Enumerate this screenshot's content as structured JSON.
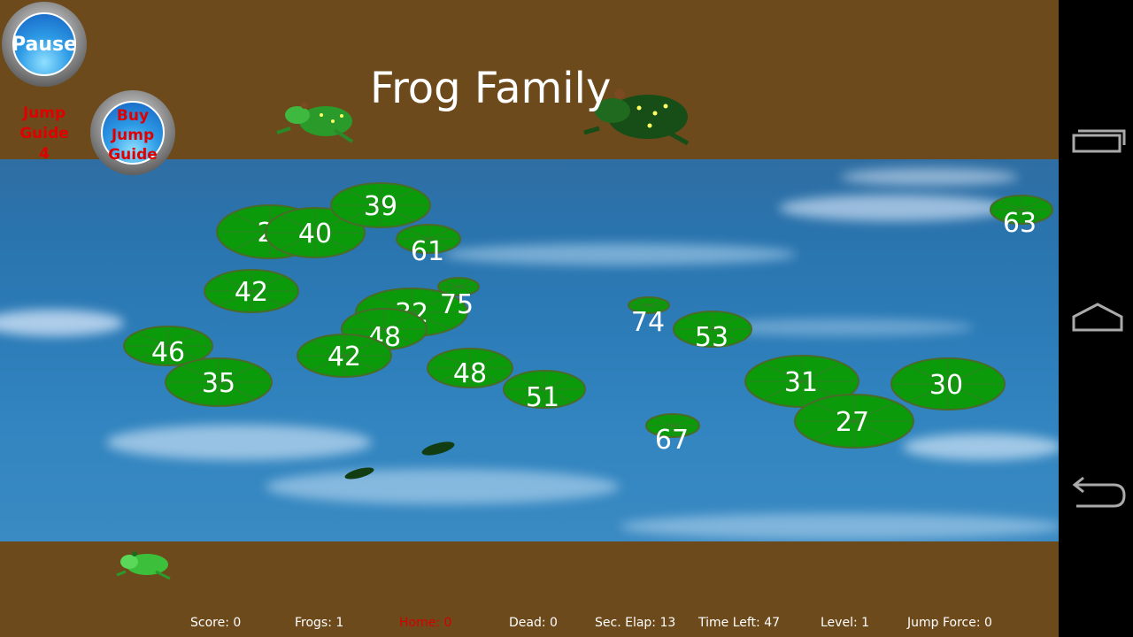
{
  "title": "Frog Family",
  "buttons": {
    "pause": "Pause",
    "buy_jump_guide": "Buy Jump Guide"
  },
  "jump_guide": {
    "label": "Jump Guide",
    "count": "4"
  },
  "lily_pads": [
    "2",
    "40",
    "39",
    "61",
    "42",
    "32",
    "75",
    "48",
    "42",
    "46",
    "35",
    "48",
    "51",
    "74",
    "53",
    "31",
    "30",
    "27",
    "67",
    "63"
  ],
  "status": {
    "score": "Score: 0",
    "frogs": "Frogs: 1",
    "home": "Home: 0",
    "dead": "Dead: 0",
    "sec_elapsed": "Sec. Elap: 13",
    "time_left": "Time Left: 47",
    "level": "Level: 1",
    "jump_force": "Jump Force: 0"
  },
  "colors": {
    "bank": "#6d4a1b",
    "pad": "#0a9a0a",
    "home_text": "#d40000",
    "jump_guide_text": "#e00000"
  },
  "icons": [
    "recent-apps-icon",
    "home-icon",
    "back-icon"
  ]
}
